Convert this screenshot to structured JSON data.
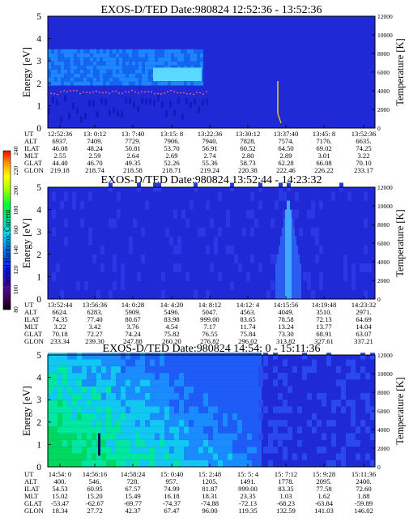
{
  "colorbar": {
    "label": "Second Harmonic Current",
    "ticks": [
      "80",
      "100",
      "120",
      "140",
      "160",
      "180",
      "200",
      "220",
      "240"
    ]
  },
  "chart_data": [
    {
      "type": "heatmap",
      "title": "EXOS-D/TED   Date:980824   12:52:36 - 13:52:36",
      "ylabel": "Energy [eV]",
      "y2label": "Temperature [K]",
      "ylim": [
        0,
        5
      ],
      "y2lim": [
        0,
        12000
      ],
      "yticks": [
        "0",
        "1",
        "2",
        "3",
        "4",
        "5"
      ],
      "y2ticks": [
        "0",
        "2000",
        "4000",
        "6000",
        "8000",
        "10000",
        "12000"
      ],
      "table": {
        "row_labels": [
          "UT",
          "ALT",
          "ILAT",
          "MLT",
          "GLAT",
          "GLON"
        ],
        "columns": [
          [
            "12:52:36",
            "6937.",
            "46.08",
            "2.55",
            "44.40",
            "219.18"
          ],
          [
            "13: 0:12",
            "7409.",
            "48.24",
            "2.59",
            "46.70",
            "218.74"
          ],
          [
            "13: 7:40",
            "7729.",
            "50.81",
            "2.64",
            "49.35",
            "218.58"
          ],
          [
            "13:15: 8",
            "7906.",
            "53.70",
            "2.69",
            "52.26",
            "218.71"
          ],
          [
            "13:22:36",
            "7940.",
            "56.91",
            "2.74",
            "55.36",
            "219.24"
          ],
          [
            "13:30:12",
            "7828.",
            "60.52",
            "2.80",
            "58.73",
            "220.38"
          ],
          [
            "13:37:40",
            "7574.",
            "64.50",
            "2.89",
            "62.28",
            "222.46"
          ],
          [
            "13:45: 8",
            "7176.",
            "69.02",
            "3.01",
            "66.08",
            "226.22"
          ],
          [
            "13:52:36",
            "6635.",
            "74.25",
            "3.22",
            "70.10",
            "233.17"
          ]
        ]
      },
      "z_level": "low (blue) with enhanced band near 2-3.5 eV",
      "temperature_trace_color": "#ffd200"
    },
    {
      "type": "heatmap",
      "title": "EXOS-D/TED   Date:980824   13:52:44 - 14:23:32",
      "ylabel": "Energy [eV]",
      "y2label": "Temperature [K]",
      "ylim": [
        0,
        5
      ],
      "y2lim": [
        0,
        12000
      ],
      "yticks": [
        "0",
        "1",
        "2",
        "3",
        "4",
        "5"
      ],
      "y2ticks": [
        "0",
        "2000",
        "4000",
        "6000",
        "8000",
        "10000",
        "12000"
      ],
      "table": {
        "row_labels": [
          "UT",
          "ALT",
          "ILAT",
          "MLT",
          "GLAT",
          "GLON"
        ],
        "columns": [
          [
            "13:52:44",
            "6624.",
            "74.35",
            "3.22",
            "70.18",
            "233.34"
          ],
          [
            "13:56:36",
            "6283.",
            "77.40",
            "3.42",
            "72.27",
            "239.30"
          ],
          [
            "14: 0:28",
            "5909.",
            "80.67",
            "3.76",
            "74.24",
            "247.88"
          ],
          [
            "14: 4:20",
            "5496.",
            "83.98",
            "4.54",
            "75.82",
            "260.20"
          ],
          [
            "14: 8:12",
            "5047.",
            "999.00",
            "7.17",
            "76.55",
            "276.82"
          ],
          [
            "14:12: 4",
            "4563.",
            "83.65",
            "11.74",
            "75.84",
            "296.02"
          ],
          [
            "14:15:56",
            "4049.",
            "78.58",
            "13.24",
            "73.30",
            "313.82"
          ],
          [
            "14:19:48",
            "3510.",
            "72.13",
            "13.77",
            "68.91",
            "327.61"
          ],
          [
            "14:23:32",
            "2971.",
            "64.69",
            "14.04",
            "63.07",
            "337.21"
          ]
        ]
      },
      "z_level": "low (blue) with spike near 14:16"
    },
    {
      "type": "heatmap",
      "title": "EXOS-D/TED   Date:980824   14:54: 0 - 15:11:36",
      "ylabel": "Energy [eV]",
      "y2label": "Temperature [K]",
      "ylim": [
        0,
        5
      ],
      "y2lim": [
        0,
        12000
      ],
      "yticks": [
        "0",
        "1",
        "2",
        "3",
        "4",
        "5"
      ],
      "y2ticks": [
        "0",
        "2000",
        "4000",
        "6000",
        "8000",
        "10000",
        "12000"
      ],
      "table": {
        "row_labels": [
          "UT",
          "ALT",
          "ILAT",
          "MLT",
          "GLAT",
          "GLON"
        ],
        "columns": [
          [
            "14:54: 0",
            "400.",
            "54.53",
            "15.02",
            "-53.47",
            "18.34"
          ],
          [
            "14:56:16",
            "546.",
            "60.95",
            "15.20",
            "-62.67",
            "27.72"
          ],
          [
            "14:58:24",
            "728.",
            "67.57",
            "15.49",
            "-69.77",
            "42.37"
          ],
          [
            "15: 0:40",
            "957.",
            "74.99",
            "16.18",
            "-74.37",
            "67.47"
          ],
          [
            "15: 2:48",
            "1205.",
            "81.87",
            "18.31",
            "-74.88",
            "96.00"
          ],
          [
            "15: 5: 4",
            "1491.",
            "999.00",
            "23.35",
            "-72.13",
            "119.35"
          ],
          [
            "15: 7:12",
            "1778.",
            "83.35",
            "1.03",
            "-68.23",
            "132.59"
          ],
          [
            "15: 9:28",
            "2095.",
            "77.58",
            "1.62",
            "-63.84",
            "141.03"
          ],
          [
            "15:11:36",
            "2400.",
            "72.60",
            "1.88",
            "-59.89",
            "146.02"
          ]
        ]
      },
      "z_level": "high (green/cyan) at start decreasing to blue"
    }
  ]
}
